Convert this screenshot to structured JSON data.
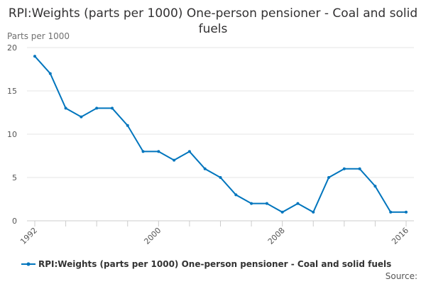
{
  "chart_data": {
    "type": "line",
    "title": "RPI:Weights (parts per 1000) One-person pensioner - Coal and solid fuels",
    "ylabel": "Parts per 1000",
    "xlabel": "",
    "ylim": [
      0,
      20
    ],
    "yticks": [
      0,
      5,
      10,
      15,
      20
    ],
    "xticks": [
      1992,
      2000,
      2008,
      2016
    ],
    "grid": true,
    "color": "#0075bd",
    "series": [
      {
        "name": "RPI:Weights (parts per 1000) One-person pensioner - Coal and solid fuels",
        "x": [
          1992,
          1993,
          1994,
          1995,
          1996,
          1997,
          1998,
          1999,
          2000,
          2001,
          2002,
          2003,
          2004,
          2005,
          2006,
          2007,
          2008,
          2009,
          2010,
          2011,
          2012,
          2013,
          2014,
          2015,
          2016
        ],
        "values": [
          19,
          17,
          13,
          12,
          13,
          13,
          11,
          8,
          8,
          7,
          8,
          6,
          5,
          3,
          2,
          2,
          1,
          2,
          1,
          5,
          6,
          6,
          4,
          1,
          1
        ]
      }
    ],
    "legend": "bottom",
    "source_label": "Source:"
  }
}
